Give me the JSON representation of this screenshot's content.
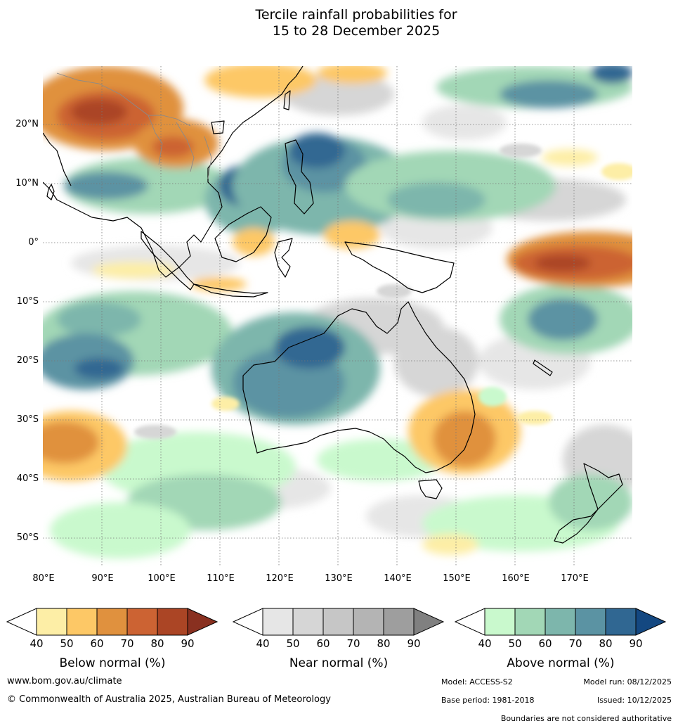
{
  "title_line1": "Tercile rainfall probabilities for",
  "title_line2": "15 to 28 December 2025",
  "latitude_labels": [
    "20°N",
    "10°N",
    "0°",
    "10°S",
    "20°S",
    "30°S",
    "40°S",
    "50°S"
  ],
  "longitude_labels": [
    "80°E",
    "90°E",
    "100°E",
    "110°E",
    "120°E",
    "130°E",
    "140°E",
    "150°E",
    "160°E",
    "170°E"
  ],
  "legends": {
    "below": {
      "caption": "Below normal (%)",
      "ticks": [
        "40",
        "50",
        "60",
        "70",
        "80",
        "90"
      ],
      "colors": [
        "#fdeea6",
        "#fdc866",
        "#e0913e",
        "#cc6333",
        "#ab4525",
        "#893020"
      ]
    },
    "near": {
      "caption": "Near normal (%)",
      "ticks": [
        "40",
        "50",
        "60",
        "70",
        "80",
        "90"
      ],
      "colors": [
        "#e6e6e6",
        "#d6d6d6",
        "#c6c6c6",
        "#b4b4b4",
        "#9e9e9e",
        "#808080"
      ]
    },
    "above": {
      "caption": "Above normal (%)",
      "ticks": [
        "40",
        "50",
        "60",
        "70",
        "80",
        "90"
      ],
      "colors": [
        "#c9f9cd",
        "#a2d7b6",
        "#7db6ac",
        "#5b93a3",
        "#306792",
        "#144881"
      ]
    }
  },
  "footer": {
    "website": "www.bom.gov.au/climate",
    "copyright": "© Commonwealth of Australia 2025, Australian Bureau of Meteorology",
    "model": "Model: ACCESS-S2",
    "model_run": "Model run: 08/12/2025",
    "base_period": "Base period: 1981-2018",
    "issued": "Issued: 10/12/2025",
    "disclaimer": "Boundaries are not considered authoritative"
  }
}
